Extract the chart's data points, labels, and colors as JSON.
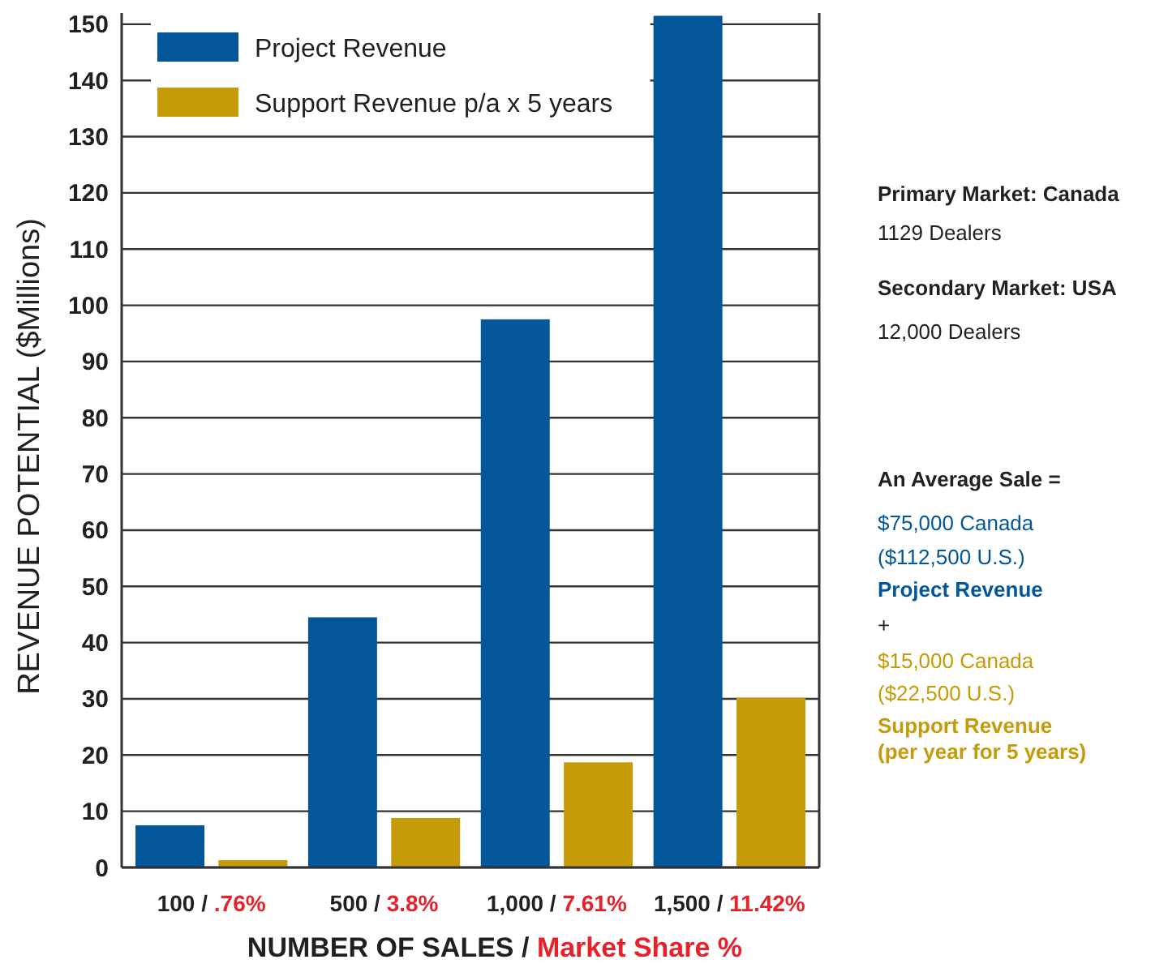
{
  "chart_data": {
    "type": "bar",
    "xlabel": "NUMBER OF SALES / Market Share %",
    "ylabel": "REVENUE POTENTIAL ($Millions)",
    "categories": [
      "100 / .76%",
      "500 / 3.8%",
      "1,000 / 7.61%",
      "1,500 / 11.42%"
    ],
    "series": [
      {
        "name": "Project Revenue",
        "color": "#02579b",
        "values": [
          7.5,
          44.5,
          97.5,
          151.5
        ]
      },
      {
        "name": "Support Revenue p/a x 5 years",
        "color": "#c59b0a",
        "values": [
          1.3,
          8.8,
          18.7,
          30.2
        ]
      }
    ],
    "ylim": [
      0,
      152
    ],
    "yticks": [
      0,
      10,
      20,
      30,
      40,
      50,
      60,
      70,
      80,
      90,
      100,
      110,
      120,
      130,
      140,
      150
    ],
    "grid": "y",
    "legend": "top left",
    "annotations": [
      "Primary Market: Canada",
      "1129 Dealers",
      "Secondary Market: USA",
      "12,000 Dealers",
      "An Average Sale =",
      "$75,000 Canada",
      "($112,500 U.S.)",
      "Project Revenue",
      "+",
      "$15,000 Canada",
      "($22,500 U.S.)",
      "Support Revenue",
      "(per year for 5 years)"
    ]
  }
}
